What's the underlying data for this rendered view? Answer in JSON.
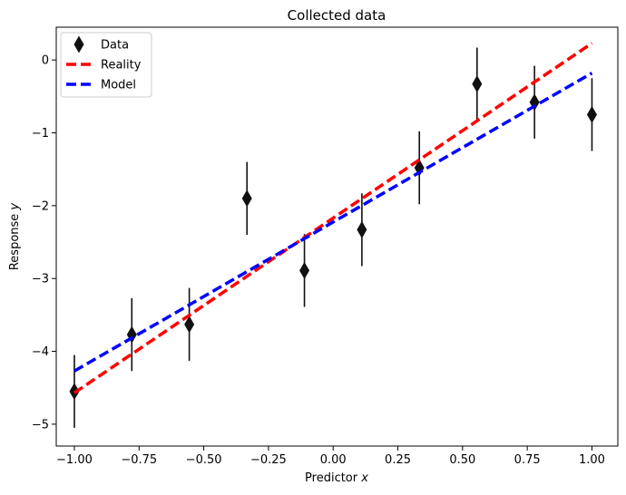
{
  "chart_data": {
    "type": "scatter",
    "title": "Collected data",
    "xlabel_prefix": "Predictor ",
    "xlabel_var": "x",
    "ylabel_prefix": "Response ",
    "ylabel_var": "y",
    "xlim": [
      -1.07,
      1.1
    ],
    "ylim": [
      -5.3,
      0.45
    ],
    "xticks": [
      -1.0,
      -0.75,
      -0.5,
      -0.25,
      0.0,
      0.25,
      0.5,
      0.75,
      1.0
    ],
    "xtick_labels": [
      "−1.00",
      "−0.75",
      "−0.50",
      "−0.25",
      "0.00",
      "0.25",
      "0.50",
      "0.75",
      "1.00"
    ],
    "yticks": [
      0,
      -1,
      -2,
      -3,
      -4,
      -5
    ],
    "ytick_labels": [
      "0",
      "−1",
      "−2",
      "−3",
      "−4",
      "−5"
    ],
    "grid": false,
    "legend_position": "top-left",
    "series": [
      {
        "name": "Data",
        "kind": "errorbar",
        "marker": "thin_diamond",
        "color": "#111111",
        "x": [
          -1.0,
          -0.778,
          -0.556,
          -0.333,
          -0.111,
          0.111,
          0.333,
          0.556,
          0.778,
          1.0
        ],
        "y": [
          -4.55,
          -3.77,
          -3.63,
          -1.9,
          -2.89,
          -2.33,
          -1.48,
          -0.33,
          -0.58,
          -0.75
        ],
        "yerr": 0.5
      },
      {
        "name": "Reality",
        "kind": "line",
        "style": "dashed",
        "color": "#ff0000",
        "x": [
          -1.0,
          1.0
        ],
        "y": [
          -4.57,
          0.23
        ]
      },
      {
        "name": "Model",
        "kind": "line",
        "style": "dashed",
        "color": "#0000ff",
        "x": [
          -1.0,
          1.0
        ],
        "y": [
          -4.27,
          -0.18
        ]
      }
    ]
  }
}
